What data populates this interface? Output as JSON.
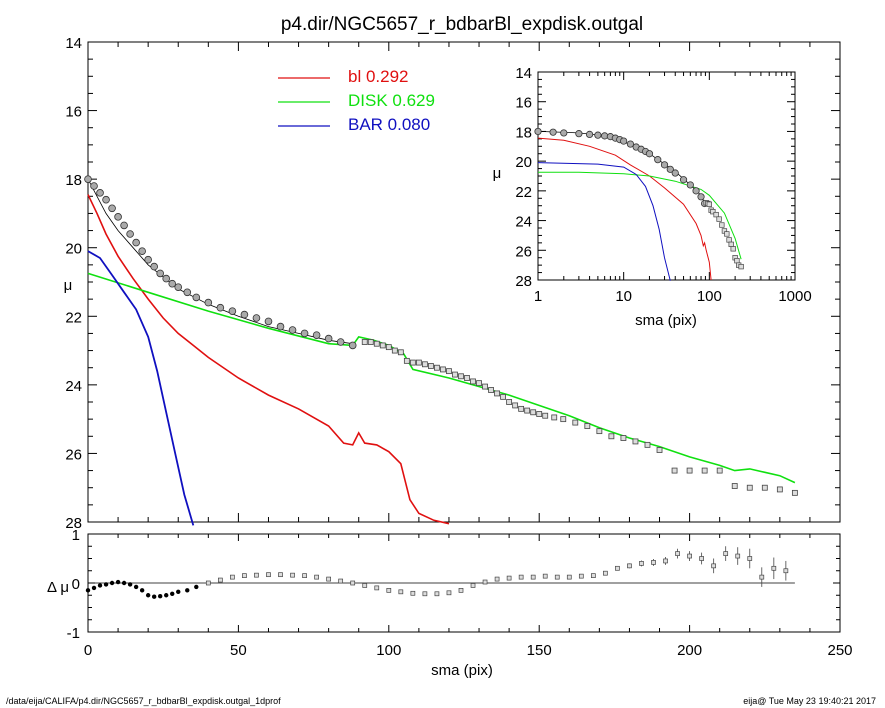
{
  "chart_data": {
    "type": "line",
    "title": "p4.dir/NGC5657_r_bdbarBl_expdisk.outgal",
    "footer_left": "/data/eija/CALIFA/p4.dir/NGC5657_r_bdbarBl_expdisk.outgal_1dprof",
    "footer_right": "eija@  Tue May 23 19:40:21 2017",
    "colors": {
      "bl": "#e01010",
      "disk": "#10e010",
      "bar": "#1010c0",
      "total": "#000000",
      "data": "#555555"
    },
    "main": {
      "xlabel": "sma (pix)",
      "ylabel": "μ",
      "xlim": [
        0,
        250
      ],
      "ylim": [
        28,
        14
      ],
      "xticks": [
        "0",
        "50",
        "100",
        "150",
        "200",
        "250"
      ],
      "yticks": [
        "14",
        "16",
        "18",
        "20",
        "22",
        "24",
        "26",
        "28"
      ],
      "legend": [
        {
          "name": "bl",
          "value": "0.292",
          "color": "#e01010"
        },
        {
          "name": "DISK",
          "value": "0.629",
          "color": "#10e010"
        },
        {
          "name": "BAR",
          "value": "0.080",
          "color": "#1010c0"
        }
      ],
      "legend_position": "top-center",
      "series": [
        {
          "id": "bl",
          "x": [
            0,
            3,
            6,
            10,
            15,
            20,
            25,
            30,
            35,
            40,
            50,
            60,
            70,
            80,
            85,
            88,
            90,
            92,
            96,
            100,
            104,
            107,
            110,
            115,
            120
          ],
          "y": [
            18.45,
            19.0,
            19.6,
            20.25,
            20.9,
            21.5,
            22.05,
            22.5,
            22.85,
            23.2,
            23.8,
            24.3,
            24.7,
            25.2,
            25.7,
            25.75,
            25.4,
            25.7,
            25.75,
            25.95,
            26.3,
            27.35,
            27.75,
            27.95,
            28.05
          ]
        },
        {
          "id": "disk",
          "x": [
            0,
            20,
            40,
            60,
            80,
            88,
            90,
            95,
            100,
            105,
            108,
            120,
            140,
            160,
            170,
            180,
            190,
            200,
            210,
            215,
            220,
            225,
            230,
            235
          ],
          "y": [
            20.75,
            21.3,
            21.85,
            22.35,
            22.8,
            22.85,
            22.6,
            22.7,
            22.85,
            23.1,
            23.55,
            23.8,
            24.3,
            24.9,
            25.25,
            25.55,
            25.8,
            26.1,
            26.35,
            26.5,
            26.45,
            26.55,
            26.65,
            26.85
          ]
        },
        {
          "id": "bar",
          "x": [
            0,
            4,
            8,
            12,
            16,
            20,
            23,
            26,
            29,
            32,
            34,
            35
          ],
          "y": [
            20.1,
            20.3,
            20.8,
            21.3,
            21.8,
            22.6,
            23.6,
            24.8,
            26.0,
            27.2,
            27.8,
            28.1
          ]
        },
        {
          "id": "total",
          "x": [
            0,
            3,
            6,
            10,
            15,
            20,
            30,
            40,
            50,
            60,
            70,
            80,
            88
          ],
          "y": [
            18.0,
            18.5,
            19.0,
            19.5,
            20.0,
            20.5,
            21.2,
            21.65,
            22.0,
            22.3,
            22.5,
            22.7,
            22.8
          ]
        }
      ],
      "data_points": {
        "x": [
          0,
          2,
          4,
          6,
          8,
          10,
          12,
          14,
          16,
          18,
          20,
          22,
          24,
          26,
          28,
          30,
          33,
          36,
          40,
          44,
          48,
          52,
          56,
          60,
          64,
          68,
          72,
          76,
          80,
          84,
          88,
          92,
          94,
          96,
          98,
          100,
          102,
          104,
          106,
          108,
          110,
          112,
          114,
          116,
          118,
          120,
          122,
          124,
          126,
          128,
          130,
          132,
          134,
          136,
          138,
          140,
          142,
          144,
          146,
          148,
          150,
          152,
          155,
          158,
          162,
          166,
          170,
          174,
          178,
          182,
          186,
          190,
          195,
          200,
          205,
          210,
          215,
          220,
          225,
          230,
          235
        ],
        "y": [
          18.0,
          18.2,
          18.4,
          18.6,
          18.85,
          19.1,
          19.35,
          19.6,
          19.85,
          20.1,
          20.35,
          20.55,
          20.75,
          20.9,
          21.05,
          21.15,
          21.3,
          21.45,
          21.6,
          21.75,
          21.85,
          21.95,
          22.05,
          22.15,
          22.3,
          22.4,
          22.5,
          22.55,
          22.65,
          22.75,
          22.85,
          22.75,
          22.75,
          22.8,
          22.85,
          22.9,
          23.0,
          23.05,
          23.3,
          23.35,
          23.35,
          23.4,
          23.45,
          23.5,
          23.55,
          23.6,
          23.7,
          23.75,
          23.8,
          23.9,
          23.95,
          24.05,
          24.15,
          24.25,
          24.35,
          24.5,
          24.6,
          24.7,
          24.75,
          24.8,
          24.85,
          24.9,
          24.95,
          25.0,
          25.1,
          25.2,
          25.35,
          25.5,
          25.55,
          25.65,
          25.75,
          25.9,
          26.5,
          26.5,
          26.5,
          26.5,
          26.95,
          27.0,
          27.0,
          27.05,
          27.15
        ]
      }
    },
    "residual": {
      "xlabel": "sma (pix)",
      "ylabel": "Δ μ",
      "xlim": [
        0,
        250
      ],
      "ylim": [
        -1.0,
        1.0
      ],
      "yticks": [
        "1",
        "0",
        "-1"
      ],
      "x": [
        0,
        2,
        4,
        6,
        8,
        10,
        12,
        14,
        16,
        18,
        20,
        22,
        24,
        26,
        28,
        30,
        33,
        36,
        40,
        44,
        48,
        52,
        56,
        60,
        64,
        68,
        72,
        76,
        80,
        84,
        88,
        92,
        96,
        100,
        104,
        108,
        112,
        116,
        120,
        124,
        128,
        132,
        136,
        140,
        144,
        148,
        152,
        156,
        160,
        164,
        168,
        172,
        176,
        180,
        184,
        188,
        192,
        196,
        200,
        204,
        208,
        212,
        216,
        220,
        224,
        228,
        232
      ],
      "y": [
        -0.15,
        -0.1,
        -0.05,
        -0.03,
        0.0,
        0.02,
        0.0,
        -0.03,
        -0.08,
        -0.15,
        -0.25,
        -0.28,
        -0.27,
        -0.25,
        -0.22,
        -0.18,
        -0.15,
        -0.08,
        0.0,
        0.06,
        0.12,
        0.15,
        0.16,
        0.17,
        0.17,
        0.16,
        0.15,
        0.12,
        0.08,
        0.04,
        0.0,
        -0.05,
        -0.1,
        -0.15,
        -0.18,
        -0.21,
        -0.22,
        -0.22,
        -0.2,
        -0.15,
        -0.05,
        0.02,
        0.08,
        0.1,
        0.12,
        0.12,
        0.14,
        0.12,
        0.12,
        0.14,
        0.15,
        0.2,
        0.3,
        0.35,
        0.4,
        0.42,
        0.45,
        0.6,
        0.55,
        0.5,
        0.35,
        0.6,
        0.55,
        0.5,
        0.12,
        0.3,
        0.25
      ],
      "err": [
        0.02,
        0.02,
        0.02,
        0.02,
        0.02,
        0.02,
        0.02,
        0.02,
        0.02,
        0.02,
        0.02,
        0.02,
        0.02,
        0.02,
        0.02,
        0.02,
        0.02,
        0.02,
        0.02,
        0.02,
        0.02,
        0.02,
        0.02,
        0.02,
        0.02,
        0.02,
        0.02,
        0.02,
        0.02,
        0.02,
        0.02,
        0.02,
        0.02,
        0.02,
        0.02,
        0.02,
        0.02,
        0.02,
        0.02,
        0.02,
        0.02,
        0.02,
        0.02,
        0.02,
        0.02,
        0.02,
        0.02,
        0.02,
        0.02,
        0.02,
        0.03,
        0.03,
        0.04,
        0.05,
        0.06,
        0.07,
        0.08,
        0.1,
        0.1,
        0.12,
        0.15,
        0.15,
        0.18,
        0.2,
        0.2,
        0.22,
        0.2
      ]
    },
    "inset": {
      "xlabel": "sma (pix)",
      "ylabel": "μ",
      "xscale": "log",
      "xlim": [
        1,
        1000
      ],
      "ylim": [
        28,
        14
      ],
      "xticks": [
        "1",
        "10",
        "100",
        "1000"
      ],
      "yticks": [
        "14",
        "16",
        "18",
        "20",
        "22",
        "24",
        "26",
        "28"
      ],
      "series": [
        {
          "id": "bl",
          "x": [
            1,
            2,
            4,
            8,
            12,
            20,
            30,
            50,
            70,
            80,
            85,
            88,
            92,
            100,
            105
          ],
          "y": [
            18.45,
            18.6,
            19.0,
            19.6,
            20.25,
            21.0,
            21.8,
            22.9,
            24.2,
            25.0,
            25.7,
            25.5,
            26.0,
            26.8,
            28.0
          ]
        },
        {
          "id": "disk",
          "x": [
            1,
            3,
            10,
            20,
            40,
            80,
            100,
            150,
            200,
            235
          ],
          "y": [
            20.75,
            20.75,
            20.85,
            21.0,
            21.35,
            21.9,
            22.3,
            23.5,
            25.2,
            26.6
          ]
        },
        {
          "id": "bar",
          "x": [
            1,
            5,
            10,
            14,
            18,
            22,
            26,
            30,
            35
          ],
          "y": [
            20.1,
            20.2,
            20.4,
            20.9,
            21.7,
            23.0,
            24.6,
            26.5,
            28.05
          ]
        },
        {
          "id": "total",
          "x": [
            1,
            3,
            6,
            10,
            20,
            40,
            60,
            80,
            88
          ],
          "y": [
            18.0,
            18.1,
            18.3,
            18.7,
            19.5,
            20.7,
            21.6,
            22.3,
            22.8
          ]
        }
      ],
      "data_points": {
        "x": [
          1,
          1.5,
          2,
          3,
          4,
          5,
          6,
          7,
          8,
          9,
          10,
          12,
          14,
          16,
          18,
          20,
          25,
          30,
          35,
          40,
          50,
          60,
          70,
          80,
          88,
          92,
          96,
          100,
          105,
          110,
          120,
          130,
          140,
          150,
          160,
          170,
          180,
          190,
          200,
          210,
          220,
          235
        ],
        "y": [
          18.0,
          18.05,
          18.1,
          18.15,
          18.2,
          18.25,
          18.3,
          18.35,
          18.45,
          18.55,
          18.65,
          18.85,
          19.05,
          19.2,
          19.35,
          19.5,
          19.9,
          20.25,
          20.55,
          20.8,
          21.25,
          21.6,
          22.0,
          22.4,
          22.85,
          22.8,
          22.85,
          22.9,
          23.3,
          23.4,
          23.6,
          23.9,
          24.3,
          24.7,
          24.9,
          25.3,
          25.6,
          25.9,
          26.5,
          26.7,
          27.0,
          27.1
        ]
      }
    }
  }
}
